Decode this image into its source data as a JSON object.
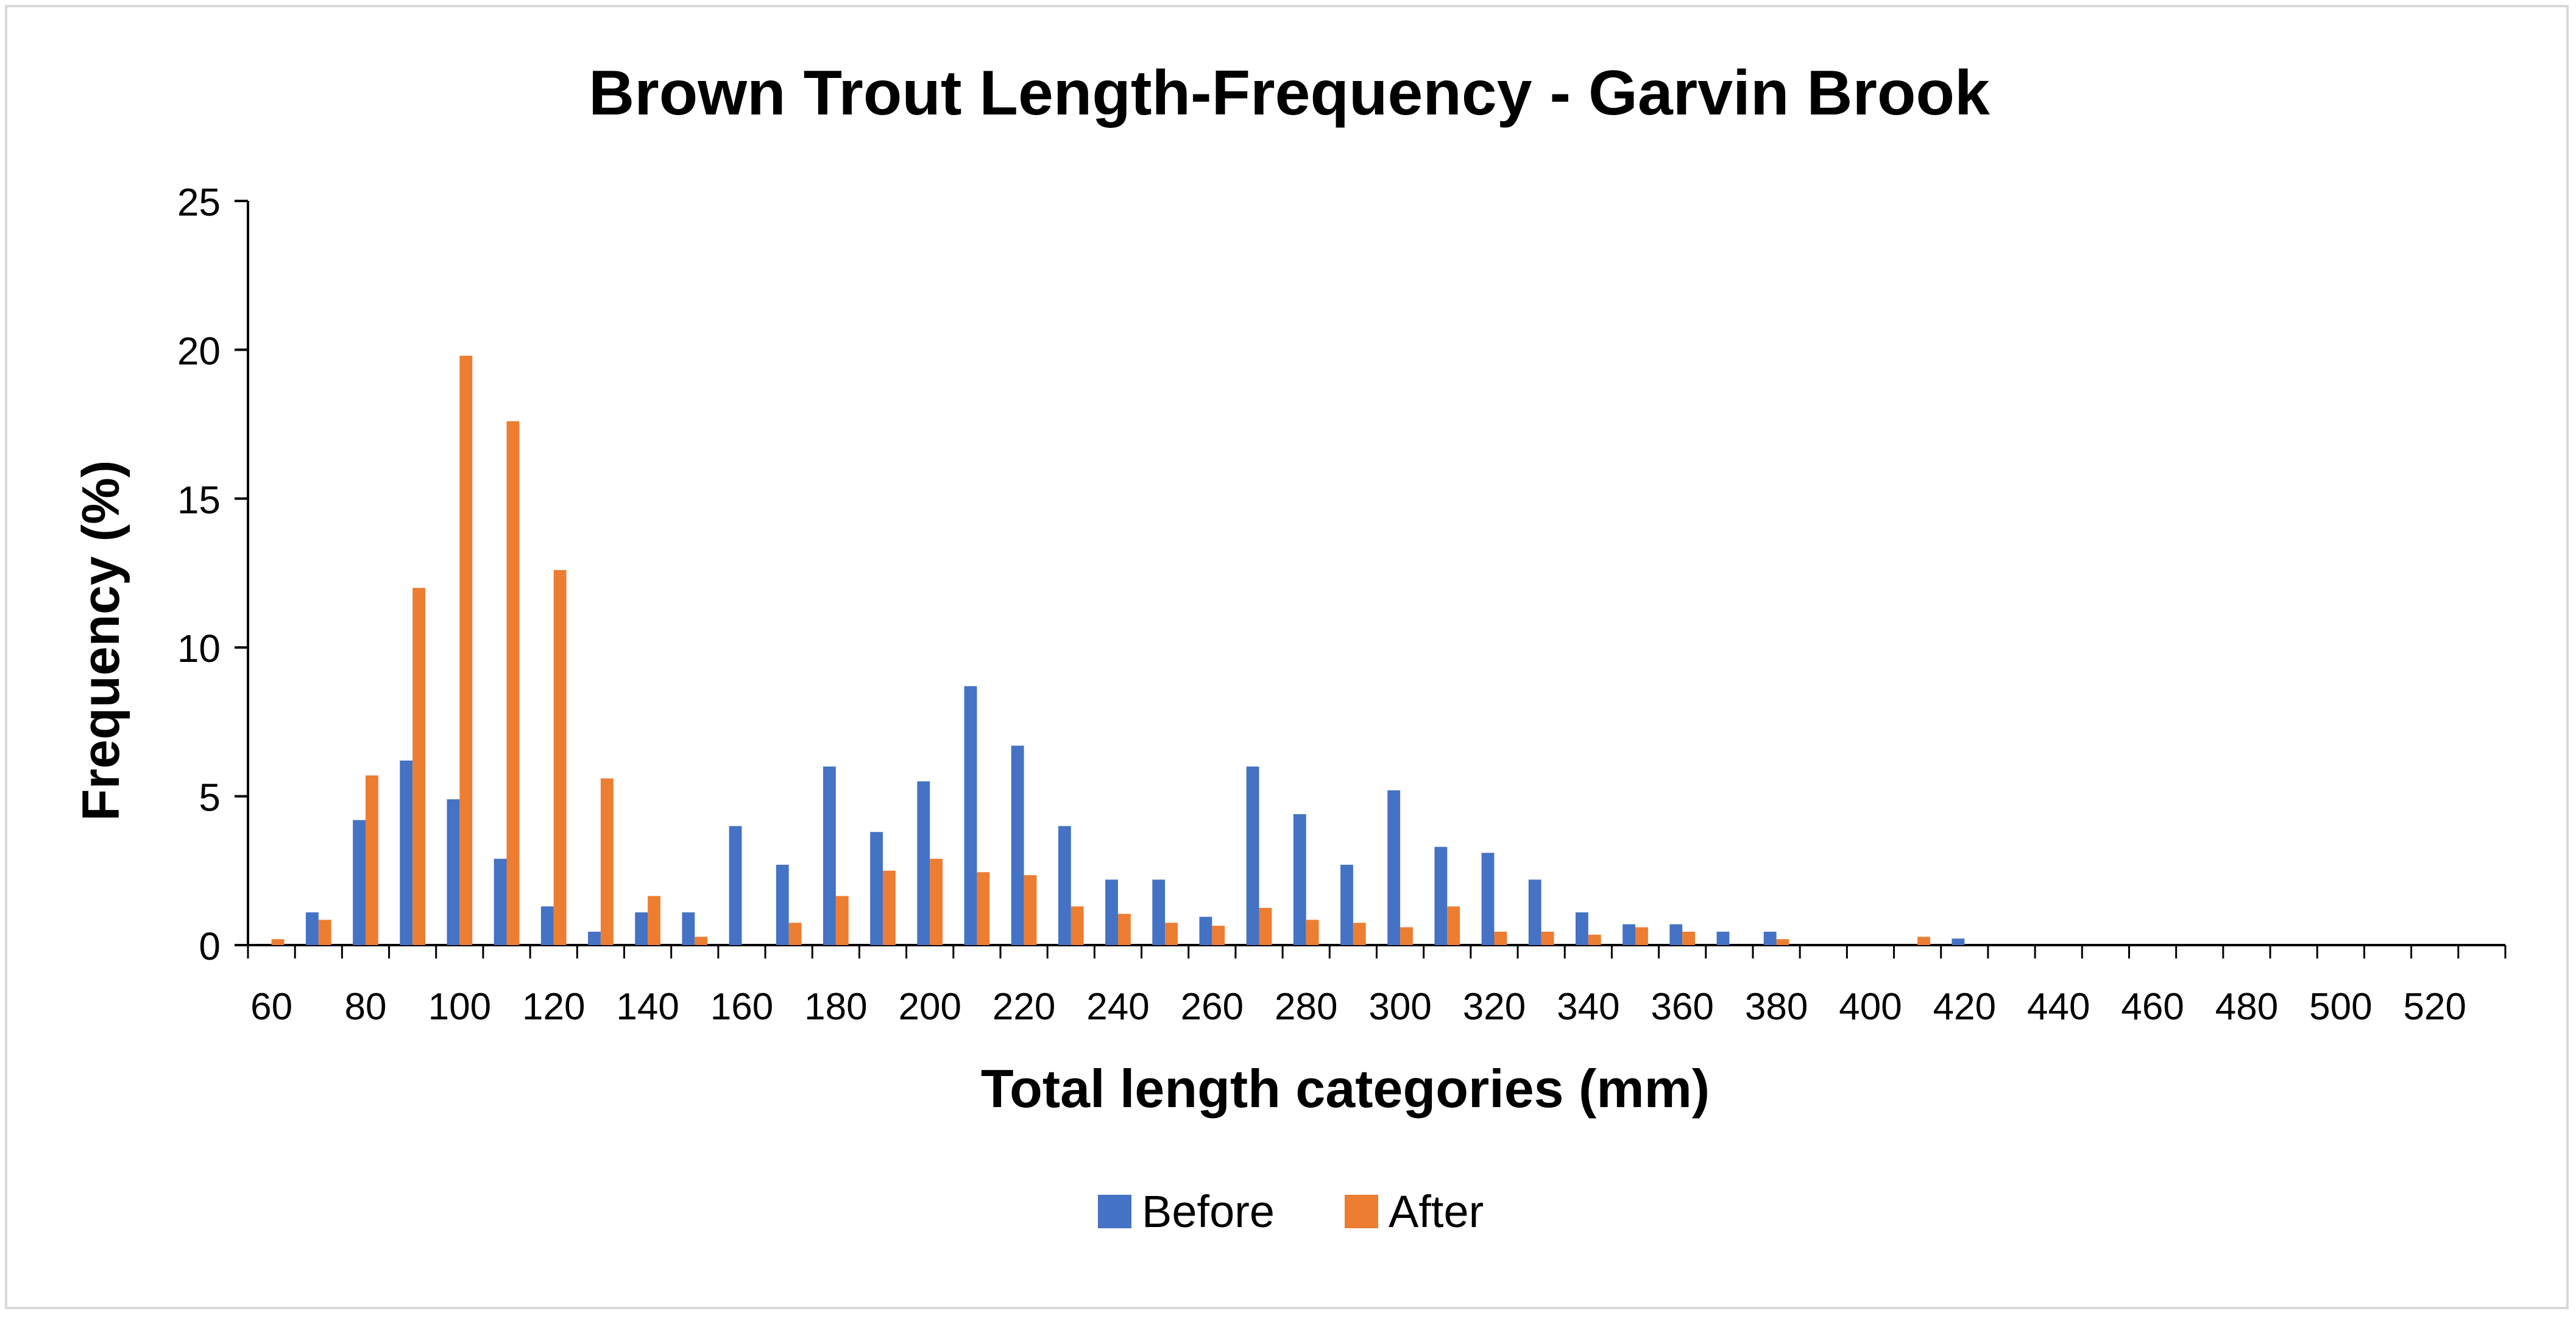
{
  "chart_data": {
    "type": "bar",
    "title": "Brown Trout Length-Frequency - Garvin Brook",
    "xlabel": "Total length categories (mm)",
    "ylabel": "Frequency (%)",
    "ylim": [
      0,
      25
    ],
    "yticks": [
      0,
      5,
      10,
      15,
      20,
      25
    ],
    "grid": false,
    "legend_position": "bottom",
    "categories": [
      60,
      70,
      80,
      90,
      100,
      110,
      120,
      130,
      140,
      150,
      160,
      170,
      180,
      190,
      200,
      210,
      220,
      230,
      240,
      250,
      260,
      270,
      280,
      290,
      300,
      310,
      320,
      330,
      340,
      350,
      360,
      370,
      380,
      390,
      400,
      410,
      420,
      430,
      440,
      450,
      460,
      470,
      480,
      490,
      500,
      510,
      520,
      530
    ],
    "x_tick_labels": [
      "60",
      "80",
      "100",
      "120",
      "140",
      "160",
      "180",
      "200",
      "220",
      "240",
      "260",
      "280",
      "300",
      "320",
      "340",
      "360",
      "380",
      "400",
      "420",
      "440",
      "460",
      "480",
      "500",
      "520"
    ],
    "series": [
      {
        "name": "Before",
        "color": "#4472C4",
        "values": [
          0,
          1.1,
          4.2,
          6.2,
          4.9,
          2.9,
          1.3,
          0.45,
          1.1,
          1.1,
          4.0,
          2.7,
          6.0,
          3.8,
          5.5,
          8.7,
          6.7,
          4.0,
          2.2,
          2.2,
          0.95,
          6.0,
          4.4,
          2.7,
          5.2,
          3.3,
          3.1,
          2.2,
          1.1,
          0.7,
          0.7,
          0.45,
          0.45,
          0,
          0,
          0,
          0.22,
          0,
          0,
          0,
          0,
          0,
          0,
          0,
          0,
          0,
          0,
          0
        ]
      },
      {
        "name": "After",
        "color": "#ED7D31",
        "values": [
          0.2,
          0.85,
          5.7,
          12.0,
          19.8,
          17.6,
          12.6,
          5.6,
          1.65,
          0.28,
          0,
          0.75,
          1.65,
          2.5,
          2.9,
          2.45,
          2.35,
          1.3,
          1.05,
          0.75,
          0.65,
          1.25,
          0.85,
          0.75,
          0.6,
          1.3,
          0.45,
          0.45,
          0.35,
          0.6,
          0.45,
          0,
          0.2,
          0,
          0,
          0.28,
          0,
          0,
          0,
          0,
          0,
          0,
          0,
          0,
          0,
          0,
          0,
          0
        ]
      }
    ]
  }
}
